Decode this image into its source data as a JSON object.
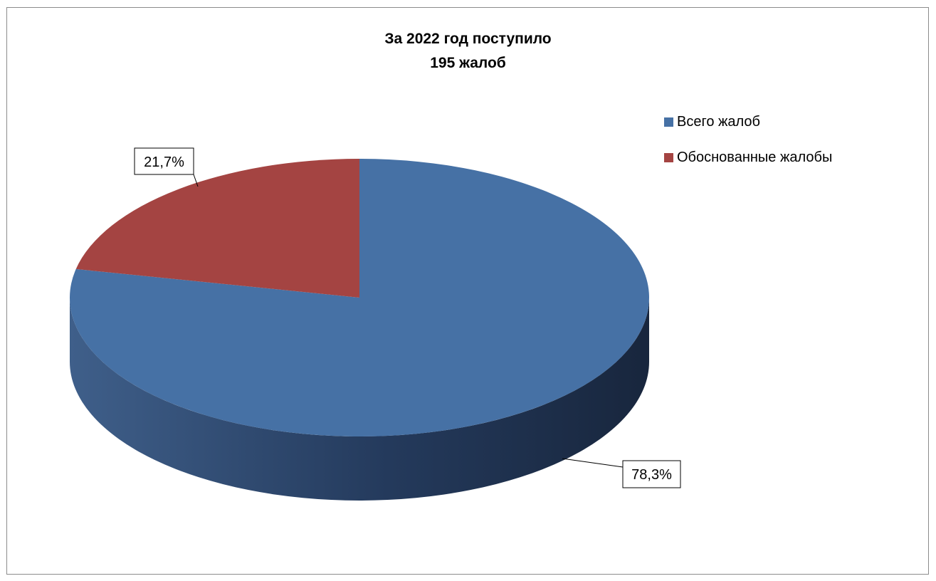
{
  "chart_data": {
    "type": "pie",
    "title_lines": [
      "За  2022 год поступило",
      "195 жалоб"
    ],
    "legend_placement": "top-right",
    "categories": [
      "Всего жалоб",
      "Обоснованные жалобы"
    ],
    "values": [
      78.3,
      21.7
    ],
    "labels": [
      "78,3%",
      "21,7%"
    ],
    "colors": [
      "#4671a5",
      "#a44442"
    ],
    "side_colors": [
      "#1b2b44",
      "#6e2c2a"
    ]
  }
}
